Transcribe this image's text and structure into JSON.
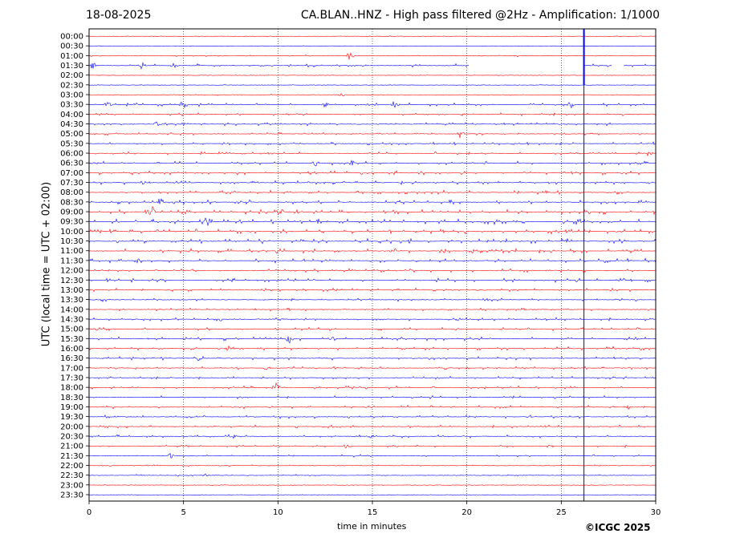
{
  "header": {
    "date": "18-08-2025",
    "title": "CA.BLAN..HNZ - High pass filtered @2Hz - Amplification: 1/1000"
  },
  "footer": {
    "copyright": "©ICGC 2025"
  },
  "colors": {
    "red_trace": "#ff0000",
    "blue_trace": "#0000ff",
    "axes": "#000000",
    "grid": "#000000"
  },
  "chart_data": {
    "type": "line",
    "title": "CA.BLAN..HNZ - High pass filtered @2Hz - Amplification: 1/1000",
    "xlabel": "time in minutes",
    "ylabel": "UTC (local time = UTC + 02:00)",
    "xlim": [
      0,
      30
    ],
    "x_ticks": [
      "0",
      "5",
      "10",
      "15",
      "20",
      "25",
      "30"
    ],
    "grid": "vertical dotted lines at 5-minute intervals",
    "row_labels": [
      "00:00",
      "00:30",
      "01:00",
      "01:30",
      "02:00",
      "02:30",
      "03:00",
      "03:30",
      "04:00",
      "04:30",
      "05:00",
      "05:30",
      "06:00",
      "06:30",
      "07:00",
      "07:30",
      "08:00",
      "08:30",
      "09:00",
      "09:30",
      "10:00",
      "10:30",
      "11:00",
      "11:30",
      "12:00",
      "12:30",
      "13:00",
      "13:30",
      "14:00",
      "14:30",
      "15:00",
      "15:30",
      "16:00",
      "16:30",
      "17:00",
      "17:30",
      "18:00",
      "18:30",
      "19:00",
      "19:30",
      "20:00",
      "20:30",
      "21:00",
      "21:30",
      "22:00",
      "22:30",
      "23:00",
      "23:30"
    ],
    "row_colors": [
      "red",
      "blue",
      "red",
      "blue",
      "red",
      "blue",
      "red",
      "blue",
      "red",
      "blue",
      "red",
      "blue",
      "red",
      "blue",
      "red",
      "blue",
      "red",
      "blue",
      "red",
      "blue",
      "red",
      "blue",
      "red",
      "blue",
      "red",
      "blue",
      "red",
      "blue",
      "red",
      "blue",
      "red",
      "blue",
      "red",
      "blue",
      "red",
      "blue",
      "red",
      "blue",
      "red",
      "blue",
      "red",
      "blue",
      "red",
      "blue",
      "red",
      "blue",
      "red",
      "blue"
    ],
    "row_activity": [
      0.2,
      0.15,
      0.3,
      0.6,
      0.1,
      0.2,
      0.25,
      0.6,
      0.5,
      0.55,
      0.5,
      0.55,
      0.6,
      0.7,
      0.7,
      0.7,
      0.75,
      0.75,
      0.85,
      0.95,
      0.85,
      0.85,
      0.85,
      0.8,
      0.65,
      0.7,
      0.65,
      0.6,
      0.55,
      0.6,
      0.55,
      0.7,
      0.65,
      0.6,
      0.55,
      0.55,
      0.6,
      0.55,
      0.6,
      0.6,
      0.55,
      0.55,
      0.45,
      0.4,
      0.3,
      0.3,
      0.2,
      0.15
    ],
    "events": [
      {
        "row": 2,
        "minute": 13.8,
        "amplitude": 0.45
      },
      {
        "row": 3,
        "minute": 0.2,
        "amplitude": 0.35
      },
      {
        "row": 3,
        "minute": 2.8,
        "amplitude": 0.4
      },
      {
        "row": 3,
        "minute": 4.5,
        "amplitude": 0.3
      },
      {
        "row": 6,
        "minute": 13.4,
        "amplitude": 0.2
      },
      {
        "row": 7,
        "minute": 1.0,
        "amplitude": 0.35
      },
      {
        "row": 7,
        "minute": 5.0,
        "amplitude": 0.55
      },
      {
        "row": 7,
        "minute": 12.5,
        "amplitude": 0.3
      },
      {
        "row": 7,
        "minute": 16.2,
        "amplitude": 0.4
      },
      {
        "row": 7,
        "minute": 25.5,
        "amplitude": 0.35
      },
      {
        "row": 9,
        "minute": 3.6,
        "amplitude": 0.3
      },
      {
        "row": 10,
        "minute": 19.7,
        "amplitude": 0.6
      },
      {
        "row": 12,
        "minute": 29.6,
        "amplitude": 0.3
      },
      {
        "row": 13,
        "minute": 12.0,
        "amplitude": 0.35
      },
      {
        "row": 13,
        "minute": 13.9,
        "amplitude": 0.4
      },
      {
        "row": 17,
        "minute": 3.8,
        "amplitude": 0.4
      },
      {
        "row": 18,
        "minute": 3.3,
        "amplitude": 0.7
      },
      {
        "row": 18,
        "minute": 10.1,
        "amplitude": 0.45
      },
      {
        "row": 19,
        "minute": 6.3,
        "amplitude": 0.45
      },
      {
        "row": 19,
        "minute": 12.2,
        "amplitude": 0.4
      },
      {
        "row": 21,
        "minute": 25.4,
        "amplitude": 0.35
      },
      {
        "row": 31,
        "minute": 10.6,
        "amplitude": 0.55
      },
      {
        "row": 31,
        "minute": 12.9,
        "amplitude": 0.3
      },
      {
        "row": 32,
        "minute": 7.3,
        "amplitude": 0.3
      },
      {
        "row": 33,
        "minute": 5.8,
        "amplitude": 0.25
      },
      {
        "row": 34,
        "minute": 9.4,
        "amplitude": 0.3
      },
      {
        "row": 36,
        "minute": 9.9,
        "amplitude": 0.7
      },
      {
        "row": 38,
        "minute": 28.5,
        "amplitude": 0.3
      },
      {
        "row": 41,
        "minute": 7.6,
        "amplitude": 0.3
      },
      {
        "row": 41,
        "minute": 14.9,
        "amplitude": 0.3
      },
      {
        "row": 42,
        "minute": 13.6,
        "amplitude": 0.25
      },
      {
        "row": 42,
        "minute": 24.3,
        "amplitude": 0.25
      },
      {
        "row": 43,
        "minute": 4.3,
        "amplitude": 0.3
      },
      {
        "row": 45,
        "minute": 6.2,
        "amplitude": 0.2
      }
    ],
    "gaps": [
      {
        "row": 3,
        "from_minute": 20.1,
        "to_minute": 26.2
      },
      {
        "row": 3,
        "from_minute": 27.7,
        "to_minute": 28.3
      }
    ],
    "spike": {
      "minute": 26.2,
      "from_row": 0,
      "to_row": 5,
      "continued_line_from_row": 5,
      "continued_line_to_row": 47
    }
  }
}
